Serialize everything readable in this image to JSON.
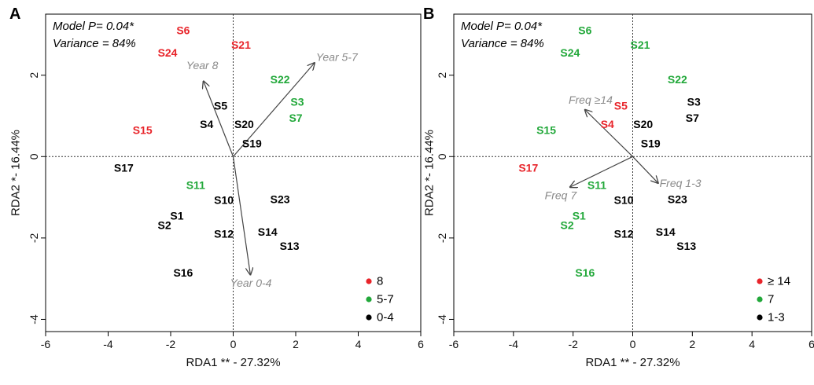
{
  "chart_data": [
    {
      "type": "scatter",
      "panel": "A",
      "xlabel": "RDA1 ** - 27.32%",
      "ylabel": "RDA2 *- 16.44%",
      "xlim": [
        -6,
        6
      ],
      "ylim": [
        -4.3,
        3.5
      ],
      "xticks": [
        -6,
        -4,
        -2,
        0,
        2,
        4,
        6
      ],
      "yticks": [
        -4,
        -2,
        0,
        2
      ],
      "annotations": [
        "Model  P= 0.04*",
        "Variance = 84%"
      ],
      "colors": {
        "red": "#e8242a",
        "green": "#22a83a",
        "black": "#000000"
      },
      "legend": {
        "placement": "bottom-right",
        "items": [
          {
            "label": "8",
            "color": "red"
          },
          {
            "label": "5-7",
            "color": "green"
          },
          {
            "label": "0-4",
            "color": "black"
          }
        ]
      },
      "points": [
        {
          "label": "S6",
          "x": -1.6,
          "y": 3.1,
          "color": "red"
        },
        {
          "label": "S24",
          "x": -2.1,
          "y": 2.55,
          "color": "red"
        },
        {
          "label": "S21",
          "x": 0.25,
          "y": 2.75,
          "color": "red"
        },
        {
          "label": "S15",
          "x": -2.9,
          "y": 0.65,
          "color": "red"
        },
        {
          "label": "S22",
          "x": 1.5,
          "y": 1.9,
          "color": "green"
        },
        {
          "label": "S3",
          "x": 2.05,
          "y": 1.35,
          "color": "green"
        },
        {
          "label": "S7",
          "x": 2.0,
          "y": 0.95,
          "color": "green"
        },
        {
          "label": "S11",
          "x": -1.2,
          "y": -0.7,
          "color": "green"
        },
        {
          "label": "S5",
          "x": -0.4,
          "y": 1.25,
          "color": "black"
        },
        {
          "label": "S4",
          "x": -0.85,
          "y": 0.8,
          "color": "black"
        },
        {
          "label": "S20",
          "x": 0.35,
          "y": 0.8,
          "color": "black"
        },
        {
          "label": "S19",
          "x": 0.6,
          "y": 0.32,
          "color": "black"
        },
        {
          "label": "S17",
          "x": -3.5,
          "y": -0.27,
          "color": "black"
        },
        {
          "label": "S10",
          "x": -0.3,
          "y": -1.07,
          "color": "black"
        },
        {
          "label": "S23",
          "x": 1.5,
          "y": -1.05,
          "color": "black"
        },
        {
          "label": "S1",
          "x": -1.8,
          "y": -1.45,
          "color": "black"
        },
        {
          "label": "S2",
          "x": -2.2,
          "y": -1.68,
          "color": "black"
        },
        {
          "label": "S12",
          "x": -0.3,
          "y": -1.9,
          "color": "black"
        },
        {
          "label": "S14",
          "x": 1.1,
          "y": -1.85,
          "color": "black"
        },
        {
          "label": "S13",
          "x": 1.8,
          "y": -2.2,
          "color": "black"
        },
        {
          "label": "S16",
          "x": -1.6,
          "y": -2.85,
          "color": "black"
        }
      ],
      "arrows": [
        {
          "label": "Year 8",
          "x": -0.95,
          "y": 1.85,
          "lx": -1.5,
          "ly": 2.15
        },
        {
          "label": "Year 5-7",
          "x": 2.6,
          "y": 2.3,
          "lx": 2.65,
          "ly": 2.35
        },
        {
          "label": "Year 0-4",
          "x": 0.55,
          "y": -2.9,
          "lx": -0.1,
          "ly": -3.2
        }
      ]
    },
    {
      "type": "scatter",
      "panel": "B",
      "xlabel": "RDA1 ** - 27.32%",
      "ylabel": "RDA2 *- 16.44%",
      "xlim": [
        -6,
        6
      ],
      "ylim": [
        -4.3,
        3.5
      ],
      "xticks": [
        -6,
        -4,
        -2,
        0,
        2,
        4,
        6
      ],
      "yticks": [
        -4,
        -2,
        0,
        2
      ],
      "annotations": [
        "Model  P= 0.04*",
        "Variance = 84%"
      ],
      "colors": {
        "red": "#e8242a",
        "green": "#22a83a",
        "black": "#000000"
      },
      "legend": {
        "placement": "bottom-right",
        "items": [
          {
            "label": "≥ 14",
            "color": "red"
          },
          {
            "label": "7",
            "color": "green"
          },
          {
            "label": "1-3",
            "color": "black"
          }
        ]
      },
      "points": [
        {
          "label": "S6",
          "x": -1.6,
          "y": 3.1,
          "color": "green"
        },
        {
          "label": "S24",
          "x": -2.1,
          "y": 2.55,
          "color": "green"
        },
        {
          "label": "S21",
          "x": 0.25,
          "y": 2.75,
          "color": "green"
        },
        {
          "label": "S15",
          "x": -2.9,
          "y": 0.65,
          "color": "green"
        },
        {
          "label": "S22",
          "x": 1.5,
          "y": 1.9,
          "color": "green"
        },
        {
          "label": "S3",
          "x": 2.05,
          "y": 1.35,
          "color": "black"
        },
        {
          "label": "S7",
          "x": 2.0,
          "y": 0.95,
          "color": "black"
        },
        {
          "label": "S11",
          "x": -1.2,
          "y": -0.7,
          "color": "green"
        },
        {
          "label": "S5",
          "x": -0.4,
          "y": 1.25,
          "color": "red"
        },
        {
          "label": "S4",
          "x": -0.85,
          "y": 0.8,
          "color": "red"
        },
        {
          "label": "S20",
          "x": 0.35,
          "y": 0.8,
          "color": "black"
        },
        {
          "label": "S19",
          "x": 0.6,
          "y": 0.32,
          "color": "black"
        },
        {
          "label": "S17",
          "x": -3.5,
          "y": -0.27,
          "color": "red"
        },
        {
          "label": "S10",
          "x": -0.3,
          "y": -1.07,
          "color": "black"
        },
        {
          "label": "S23",
          "x": 1.5,
          "y": -1.05,
          "color": "black"
        },
        {
          "label": "S1",
          "x": -1.8,
          "y": -1.45,
          "color": "green"
        },
        {
          "label": "S2",
          "x": -2.2,
          "y": -1.68,
          "color": "green"
        },
        {
          "label": "S12",
          "x": -0.3,
          "y": -1.9,
          "color": "black"
        },
        {
          "label": "S14",
          "x": 1.1,
          "y": -1.85,
          "color": "black"
        },
        {
          "label": "S13",
          "x": 1.8,
          "y": -2.2,
          "color": "black"
        },
        {
          "label": "S16",
          "x": -1.6,
          "y": -2.85,
          "color": "green"
        }
      ],
      "arrows": [
        {
          "label": "Freq ≥14",
          "x": -1.6,
          "y": 1.15,
          "lx": -2.15,
          "ly": 1.3
        },
        {
          "label": "Freq 1-3",
          "x": 0.85,
          "y": -0.65,
          "lx": 0.9,
          "ly": -0.75
        },
        {
          "label": "Freq 7",
          "x": -2.1,
          "y": -0.75,
          "lx": -2.95,
          "ly": -1.05
        }
      ]
    }
  ]
}
